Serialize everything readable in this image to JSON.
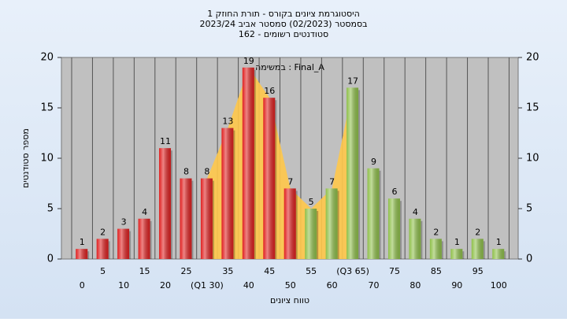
{
  "chart_data": {
    "type": "bar",
    "title": "היסטוגרמת ציונים בקורס - תורת החוזק 1",
    "subtitle": "בסמסטר  (02/2023)  סמסטר אביב 2023/24",
    "subtitle2": "סטודנטים רשומים - 162",
    "annotation": "במשימה : Final_A",
    "x_label": "טווח ציונים",
    "y_label": "מספר סטודנטים",
    "categories": [
      "0",
      "5",
      "10",
      "15",
      "20",
      "25",
      "(Q1 30)",
      "35",
      "40",
      "45",
      "50",
      "55",
      "60",
      "(Q3 65)",
      "70",
      "75",
      "80",
      "85",
      "90",
      "95",
      "100"
    ],
    "values": [
      1,
      2,
      3,
      4,
      11,
      8,
      8,
      13,
      19,
      16,
      7,
      5,
      7,
      17,
      9,
      6,
      4,
      2,
      1,
      2,
      1
    ],
    "bar_colors": [
      "#e02020",
      "#e02020",
      "#e02020",
      "#e02020",
      "#e02020",
      "#e02020",
      "#e02020",
      "#e02020",
      "#e02020",
      "#e02020",
      "#e02020",
      "#8fc04a",
      "#8fc04a",
      "#8fc04a",
      "#8fc04a",
      "#8fc04a",
      "#8fc04a",
      "#8fc04a",
      "#8fc04a",
      "#8fc04a",
      "#8fc04a"
    ],
    "quartile_shade": {
      "color": "#ffc84a",
      "start_index": 6,
      "end_index": 13
    },
    "ylim": [
      0,
      20
    ],
    "yticks": [
      0,
      5,
      10,
      15,
      20
    ],
    "grid": true
  }
}
